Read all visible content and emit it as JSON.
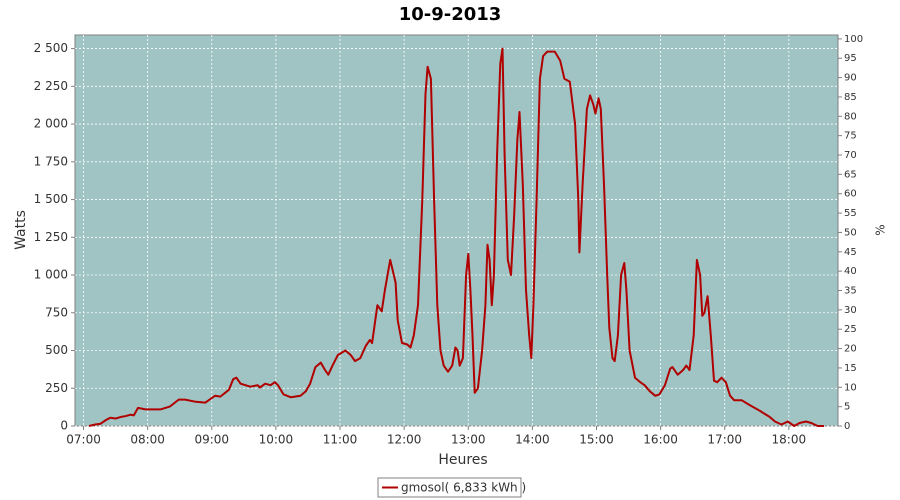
{
  "chart_data": {
    "type": "line",
    "title": "10-9-2013",
    "x_label": "Heures",
    "y_label": "Watts",
    "y2_label": "%",
    "grid": true,
    "legend": "bottom",
    "plot_background": "#a0c4c4",
    "xlim": [
      "06:52",
      "18:46"
    ],
    "xticks": [
      "07:00",
      "08:00",
      "09:00",
      "10:00",
      "11:00",
      "12:00",
      "13:00",
      "14:00",
      "15:00",
      "16:00",
      "17:00",
      "18:00"
    ],
    "ylim": [
      0,
      2590
    ],
    "yticks": [
      0,
      250,
      500,
      750,
      {
        "value": 1000,
        "label": "1 000"
      },
      {
        "value": 1250,
        "label": "1 250"
      },
      {
        "value": 1500,
        "label": "1 500"
      },
      {
        "value": 1750,
        "label": "1 750"
      },
      {
        "value": 2000,
        "label": "2 000"
      },
      {
        "value": 2250,
        "label": "2 250"
      },
      {
        "value": 2500,
        "label": "2 500"
      }
    ],
    "y2lim": [
      0,
      101
    ],
    "y2ticks": [
      0,
      5,
      10,
      15,
      20,
      25,
      30,
      35,
      40,
      45,
      50,
      55,
      60,
      65,
      70,
      75,
      80,
      85,
      90,
      95,
      100
    ],
    "x": [
      "07:05",
      "07:11",
      "07:16",
      "07:21",
      "07:25",
      "07:30",
      "07:35",
      "07:39",
      "07:44",
      "07:47",
      "07:51",
      "07:58",
      "08:12",
      "08:21",
      "08:29",
      "08:35",
      "08:45",
      "08:54",
      "08:59",
      "09:03",
      "09:08",
      "09:16",
      "09:20",
      "09:23",
      "09:27",
      "09:36",
      "09:43",
      "09:45",
      "09:50",
      "09:55",
      "09:59",
      "10:02",
      "10:07",
      "10:14",
      "10:23",
      "10:28",
      "10:32",
      "10:37",
      "10:42",
      "10:46",
      "10:49",
      "10:53",
      "10:58",
      "11:05",
      "11:10",
      "11:14",
      "11:19",
      "11:24",
      "11:28",
      "11:30",
      "11:35",
      "11:39",
      "11:42",
      "11:47",
      "11:52",
      "11:54",
      "11:58",
      "12:03",
      "12:06",
      "12:09",
      "12:13",
      "12:17",
      "12:20",
      "12:22",
      "12:25",
      "12:28",
      "12:31",
      "12:34",
      "12:37",
      "12:41",
      "12:45",
      "12:48",
      "12:50",
      "12:52",
      "12:55",
      "12:58",
      "13:00",
      "13:02",
      "13:04",
      "13:06",
      "13:09",
      "13:13",
      "13:16",
      "13:18",
      "13:20",
      "13:22",
      "13:24",
      "13:27",
      "13:30",
      "13:32",
      "13:34",
      "13:37",
      "13:40",
      "13:43",
      "13:46",
      "13:48",
      "13:51",
      "13:54",
      "13:57",
      "13:59",
      "14:01",
      "14:04",
      "14:07",
      "14:10",
      "14:14",
      "14:21",
      "14:26",
      "14:30",
      "14:35",
      "14:40",
      "14:43",
      "14:44",
      "14:47",
      "14:51",
      "14:54",
      "14:57",
      "14:59",
      "15:02",
      "15:04",
      "15:07",
      "15:10",
      "15:12",
      "15:15",
      "15:17",
      "15:20",
      "15:23",
      "15:26",
      "15:28",
      "15:31",
      "15:36",
      "15:41",
      "15:45",
      "15:50",
      "15:55",
      "15:59",
      "16:04",
      "16:09",
      "16:11",
      "16:16",
      "16:21",
      "16:24",
      "16:27",
      "16:31",
      "16:34",
      "16:37",
      "16:39",
      "16:41",
      "16:44",
      "16:47",
      "16:50",
      "16:53",
      "16:57",
      "17:01",
      "17:05",
      "17:09",
      "17:16",
      "17:23",
      "17:33",
      "17:42",
      "17:47",
      "17:53",
      "17:59",
      "18:05",
      "18:10",
      "18:16",
      "18:21",
      "18:27",
      "18:33"
    ],
    "series": [
      {
        "name": "gmosol( 6,833 kWh )",
        "color": "#b00000",
        "values": [
          0,
          10,
          15,
          40,
          55,
          50,
          60,
          65,
          75,
          70,
          120,
          110,
          110,
          130,
          175,
          175,
          160,
          155,
          180,
          200,
          195,
          240,
          310,
          320,
          280,
          260,
          270,
          255,
          280,
          270,
          290,
          270,
          210,
          190,
          200,
          230,
          280,
          390,
          420,
          370,
          340,
          400,
          470,
          500,
          470,
          430,
          450,
          530,
          570,
          550,
          800,
          760,
          900,
          1100,
          950,
          700,
          550,
          540,
          520,
          600,
          800,
          1500,
          2200,
          2380,
          2300,
          1500,
          800,
          500,
          400,
          360,
          400,
          520,
          500,
          400,
          450,
          1000,
          1140,
          900,
          600,
          220,
          250,
          500,
          800,
          1200,
          1100,
          800,
          1000,
          1800,
          2400,
          2500,
          1800,
          1100,
          1000,
          1400,
          1900,
          2080,
          1600,
          900,
          600,
          450,
          800,
          1500,
          2300,
          2450,
          2480,
          2480,
          2420,
          2300,
          2280,
          2000,
          1500,
          1150,
          1600,
          2100,
          2190,
          2130,
          2070,
          2170,
          2100,
          1600,
          1000,
          650,
          450,
          430,
          600,
          1000,
          1080,
          900,
          500,
          320,
          290,
          270,
          230,
          200,
          210,
          270,
          380,
          390,
          340,
          370,
          400,
          370,
          600,
          1100,
          1000,
          730,
          750,
          860,
          600,
          300,
          290,
          320,
          290,
          200,
          170,
          170,
          140,
          100,
          60,
          30,
          10,
          30,
          0,
          20,
          30,
          20,
          0,
          0
        ]
      }
    ]
  }
}
